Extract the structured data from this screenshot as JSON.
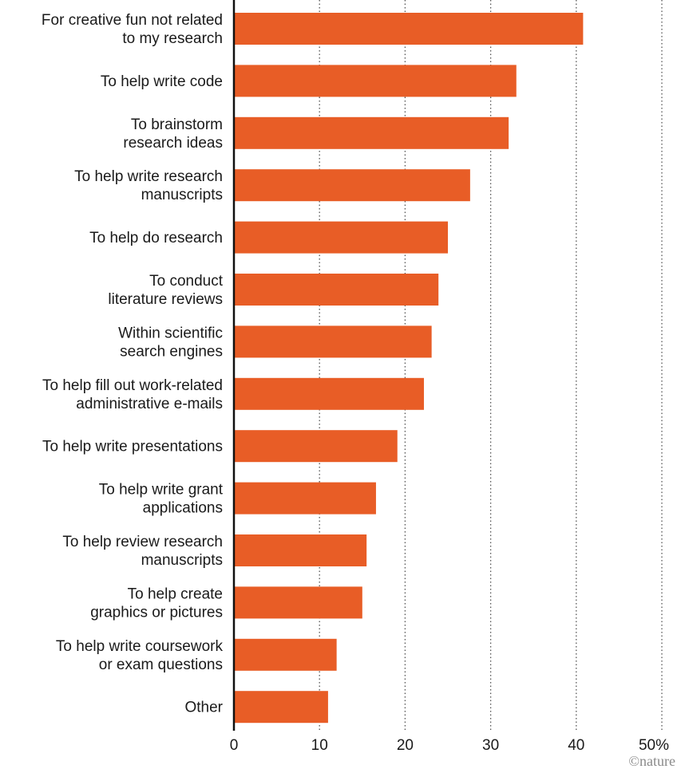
{
  "chart_data": {
    "type": "bar",
    "orientation": "horizontal",
    "categories": [
      [
        "For creative fun not related",
        "to my research"
      ],
      [
        "To help write code"
      ],
      [
        "To brainstorm",
        "research ideas"
      ],
      [
        "To help write research",
        "manuscripts"
      ],
      [
        "To help do research"
      ],
      [
        "To conduct",
        "literature reviews"
      ],
      [
        "Within scientific",
        "search engines"
      ],
      [
        "To help fill out work-related",
        "administrative e-mails"
      ],
      [
        "To help write presentations"
      ],
      [
        "To help write grant",
        "applications"
      ],
      [
        "To help review research",
        "manuscripts"
      ],
      [
        "To help create",
        "graphics or pictures"
      ],
      [
        "To help write coursework",
        "or exam questions"
      ],
      [
        "Other"
      ]
    ],
    "values": [
      40.8,
      33.0,
      32.1,
      27.6,
      25.0,
      23.9,
      23.1,
      22.2,
      19.1,
      16.6,
      15.5,
      15.0,
      12.0,
      11.0
    ],
    "xlim": [
      0,
      50
    ],
    "xticks": [
      "0",
      "10",
      "20",
      "30",
      "40",
      "50%"
    ],
    "grid": "vertical dotted",
    "bar_color": "#e85d26",
    "credit": "©nature"
  }
}
